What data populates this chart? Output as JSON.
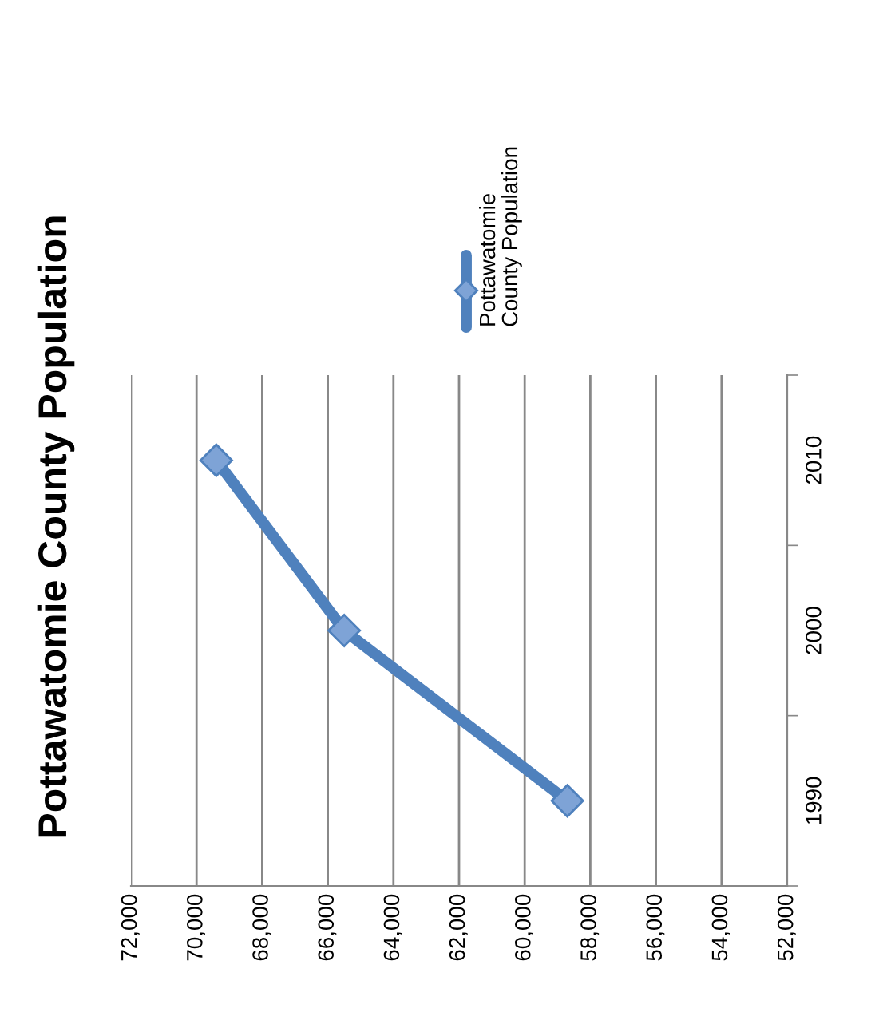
{
  "chart_data": {
    "type": "line",
    "orientation": "horizontal",
    "title": "Pottawatomie County Population",
    "categories": [
      "2010",
      "2000",
      "1990"
    ],
    "series": [
      {
        "name": "Pottawatomie County Population",
        "color": "#4f81bd",
        "values": [
          69400,
          65500,
          58700
        ]
      }
    ],
    "xlim": [
      72000,
      52000
    ],
    "xticks": [
      {
        "value": 72000,
        "label": "72,000"
      },
      {
        "value": 70000,
        "label": "70,000"
      },
      {
        "value": 68000,
        "label": "68,000"
      },
      {
        "value": 66000,
        "label": "66,000"
      },
      {
        "value": 64000,
        "label": "64,000"
      },
      {
        "value": 62000,
        "label": "62,000"
      },
      {
        "value": 60000,
        "label": "60,000"
      },
      {
        "value": 58000,
        "label": "58,000"
      },
      {
        "value": 56000,
        "label": "56,000"
      },
      {
        "value": 54000,
        "label": "54,000"
      },
      {
        "value": 52000,
        "label": "52,000"
      }
    ],
    "grid": "x",
    "legend": "top right",
    "marker": "diamond",
    "line_style": "solid"
  }
}
